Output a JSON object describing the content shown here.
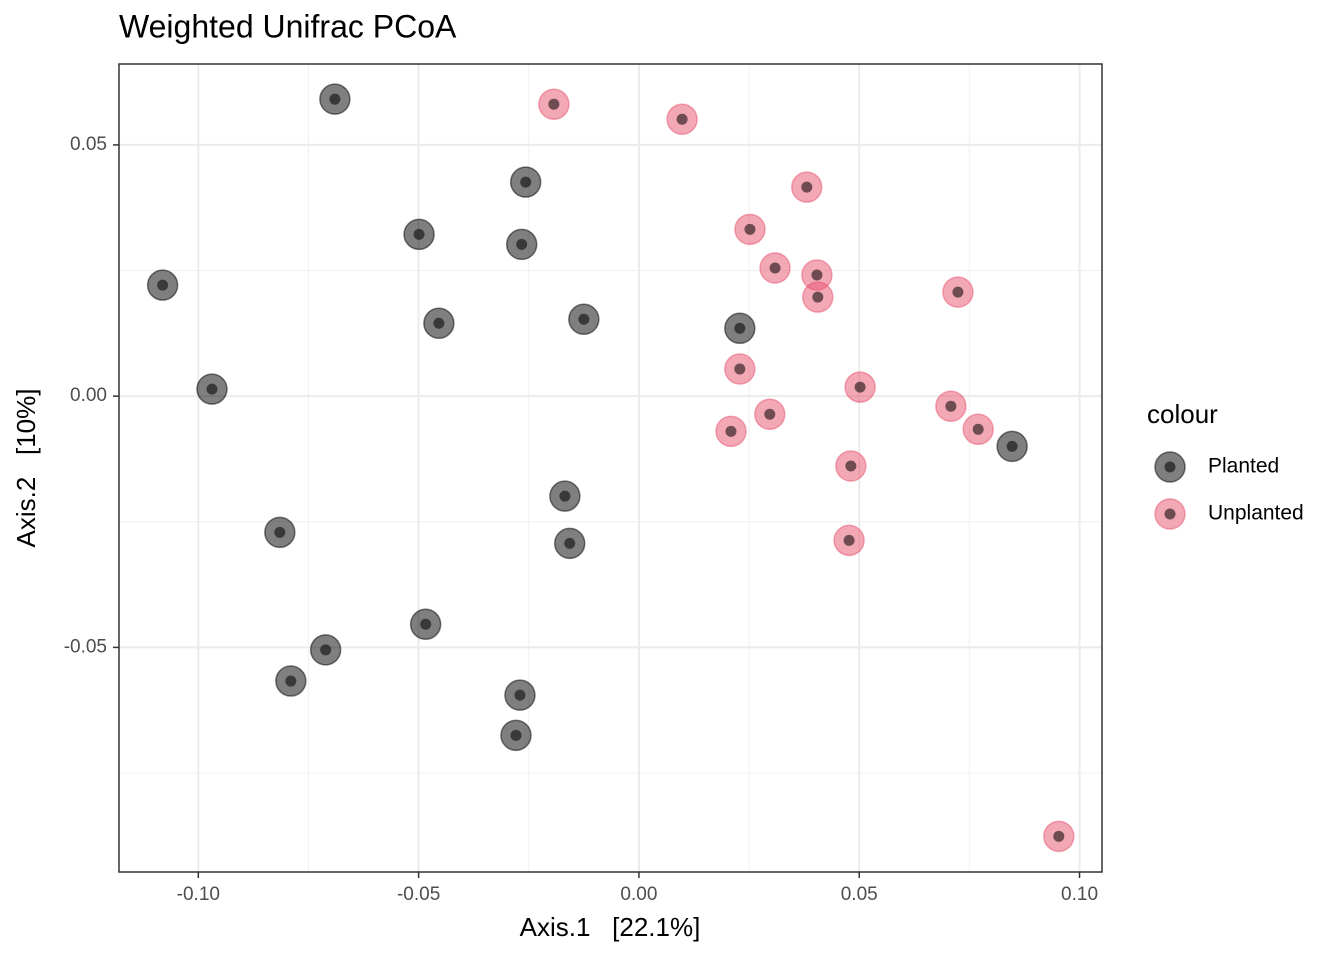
{
  "chart_data": {
    "type": "scatter",
    "title": "Weighted Unifrac PCoA",
    "x_label": "Axis.1   [22.1%]",
    "y_label": "Axis.2   [10%]",
    "legend_title": "colour",
    "legend_position": "right",
    "grid": true,
    "xlim": [
      -0.118,
      0.1051
    ],
    "ylim": [
      -0.0947,
      0.0661
    ],
    "xticks": [
      {
        "value": -0.1,
        "label": "-0.10"
      },
      -0.05,
      {
        "value": 0,
        "label": "0.00"
      },
      0.05,
      {
        "value": 0.1,
        "label": "0.10"
      }
    ],
    "yticks": [
      -0.05,
      {
        "value": 0,
        "label": "0.00"
      },
      0.05
    ],
    "x_minor_grid": [
      -0.075,
      -0.025,
      0.025,
      0.075
    ],
    "y_minor_grid": [
      -0.075,
      -0.025,
      0.025
    ],
    "series": [
      {
        "name": "Planted",
        "color": "#000000",
        "x": [
          -0.069,
          -0.0257,
          -0.0499,
          -0.0266,
          -0.1081,
          -0.0454,
          -0.0125,
          0.0229,
          -0.0969,
          0.0847,
          -0.0168,
          -0.0157,
          -0.0815,
          -0.0484,
          -0.0711,
          -0.079,
          -0.027,
          -0.0279
        ],
        "values": [
          0.0591,
          0.0426,
          0.0322,
          0.0302,
          0.0221,
          0.0145,
          0.0153,
          0.0135,
          0.0014,
          -0.01,
          -0.0199,
          -0.0293,
          -0.0271,
          -0.0454,
          -0.0505,
          -0.0567,
          -0.0595,
          -0.0675
        ]
      },
      {
        "name": "Unplanted",
        "color": "#e8516e",
        "x": [
          -0.0193,
          0.0098,
          0.0381,
          0.0252,
          0.0309,
          0.0404,
          0.0406,
          0.0724,
          0.0229,
          0.0502,
          0.0708,
          0.0297,
          0.0209,
          0.077,
          0.0481,
          0.0477,
          0.0953
        ],
        "values": [
          0.0581,
          0.0551,
          0.0416,
          0.0332,
          0.0255,
          0.0241,
          0.0197,
          0.0207,
          0.0054,
          0.0018,
          -0.002,
          -0.0036,
          -0.007,
          -0.0066,
          -0.0139,
          -0.0287,
          -0.0876
        ]
      }
    ]
  }
}
